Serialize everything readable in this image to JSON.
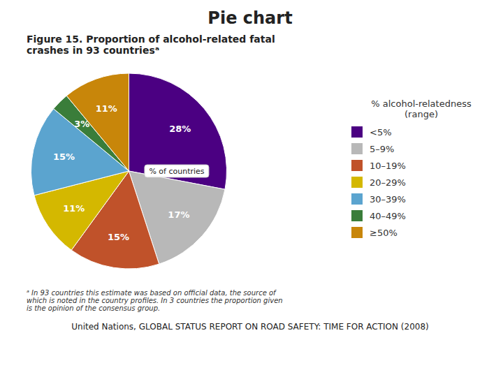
{
  "chart_data": {
    "type": "pie",
    "title": "Pie chart",
    "subtitle": "Figure 15. Proportion of alcohol-related fatal\ncrashes in 93 countriesᵃ",
    "categories": [
      "<5%",
      "5–9%",
      "10–19%",
      "20–29%",
      "30–39%",
      "40–49%",
      "≥50%"
    ],
    "values": [
      28,
      17,
      15,
      11,
      15,
      3,
      11
    ],
    "value_labels": [
      "28%",
      "17%",
      "15%",
      "11%",
      "15%",
      "3%",
      "11%"
    ],
    "colors": [
      "#4B0082",
      "#B8B8B8",
      "#C0522A",
      "#D4B800",
      "#5BA4CF",
      "#3A7D3A",
      "#C8860A"
    ],
    "data_labels": true,
    "legend": "right",
    "legend_title": "% alcohol-relatedness\n(range)",
    "annotations": [
      "% of countries",
      "ᵃ In 93 countries this estimate was based on official data, the source of\nwhich is noted in the country profiles. In 3 countries the proportion given\nis the opinion of the consensus group.",
      "United Nations, GLOBAL STATUS REPORT ON ROAD SAFETY: TIME FOR ACTION (2008)"
    ]
  }
}
